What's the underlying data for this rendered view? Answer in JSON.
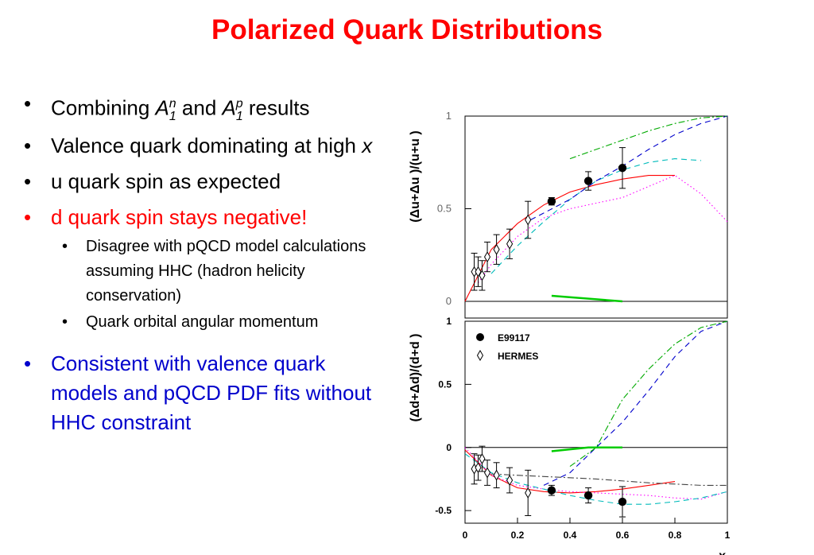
{
  "slide": {
    "title": "Polarized Quark Distributions"
  },
  "bullets": {
    "b1_text1": "Combining ",
    "b1_a1": "A",
    "b1_sub1": "1",
    "b1_sup1": "n",
    "b1_text2": " and ",
    "b1_a2": "A",
    "b1_sub2": "1",
    "b1_sup2": "p",
    "b1_text3": " results",
    "b2_text": "Valence quark dominating at high ",
    "b2_x": "x",
    "b3": "u quark spin as expected",
    "b4": "d quark spin stays negative!",
    "sub1": "Disagree with pQCD model calculations assuming HHC (hadron helicity conservation)",
    "sub2": "Quark orbital angular momentum",
    "b5": "Consistent with valence quark models and pQCD PDF fits without HHC constraint",
    "bullet_char": "•"
  },
  "colors": {
    "title": "#ff0000",
    "negative_bullet": "#ff0000",
    "conclusion_bullet": "#0000cc"
  },
  "chart_data": [
    {
      "type": "scatter",
      "panel": "top",
      "ylabel": "(Δu+Δu )/(u+u )",
      "xlim": [
        0,
        1
      ],
      "ylim": [
        0,
        1
      ],
      "yticks": [
        "0",
        "0.5",
        "1"
      ],
      "series": [
        {
          "name": "E99117",
          "marker": "filled-circle",
          "x": [
            0.33,
            0.47,
            0.6
          ],
          "y": [
            0.54,
            0.65,
            0.72
          ],
          "err": [
            0.02,
            0.05,
            0.11
          ]
        },
        {
          "name": "HERMES",
          "marker": "open-diamond",
          "x": [
            0.035,
            0.05,
            0.065,
            0.085,
            0.12,
            0.17,
            0.24
          ],
          "y": [
            0.16,
            0.16,
            0.14,
            0.24,
            0.28,
            0.31,
            0.44
          ],
          "err": [
            0.1,
            0.08,
            0.08,
            0.08,
            0.08,
            0.08,
            0.1
          ]
        }
      ],
      "curves": [
        {
          "color": "#ff0000",
          "style": "solid",
          "x": [
            0,
            0.1,
            0.2,
            0.3,
            0.4,
            0.5,
            0.6,
            0.7,
            0.8
          ],
          "y": [
            0.0,
            0.28,
            0.42,
            0.52,
            0.59,
            0.63,
            0.66,
            0.68,
            0.68
          ]
        },
        {
          "color": "#ff00ff",
          "style": "dotted",
          "x": [
            0.05,
            0.1,
            0.2,
            0.3,
            0.4,
            0.5,
            0.6,
            0.7,
            0.8,
            0.9,
            1.0
          ],
          "y": [
            0.1,
            0.2,
            0.35,
            0.45,
            0.5,
            0.53,
            0.56,
            0.62,
            0.68,
            0.58,
            0.43
          ]
        },
        {
          "color": "#00bbbb",
          "style": "dashed",
          "x": [
            0.1,
            0.2,
            0.3,
            0.4,
            0.5,
            0.6,
            0.7,
            0.8,
            0.9
          ],
          "y": [
            0.15,
            0.3,
            0.43,
            0.55,
            0.65,
            0.71,
            0.75,
            0.77,
            0.76
          ]
        },
        {
          "color": "#0000cc",
          "style": "dashed",
          "x": [
            0.25,
            0.4,
            0.5,
            0.6,
            0.7,
            0.8,
            0.9,
            1.0
          ],
          "y": [
            0.44,
            0.55,
            0.65,
            0.73,
            0.82,
            0.9,
            0.96,
            1.0
          ]
        },
        {
          "color": "#00aa00",
          "style": "dashdot",
          "x": [
            0.4,
            0.5,
            0.6,
            0.7,
            0.8,
            0.9,
            1.0
          ],
          "y": [
            0.77,
            0.82,
            0.87,
            0.92,
            0.96,
            0.99,
            1.0
          ]
        },
        {
          "color": "#00cc00",
          "style": "solid",
          "x": [
            0.33,
            0.6
          ],
          "y": [
            0.03,
            0.0
          ]
        }
      ]
    },
    {
      "type": "scatter",
      "panel": "bottom",
      "ylabel": "(Δd+Δd)/(d+d )",
      "xlabel": "x",
      "xlim": [
        0,
        1
      ],
      "ylim": [
        -0.6,
        1
      ],
      "yticks": [
        "-0.5",
        "0",
        "0.5",
        "1"
      ],
      "xticks": [
        "0",
        "0.2",
        "0.4",
        "0.6",
        "0.8",
        "1"
      ],
      "legend": {
        "placement": "top-left",
        "entries": [
          "E99117",
          "HERMES"
        ]
      },
      "series": [
        {
          "name": "E99117",
          "marker": "filled-circle",
          "x": [
            0.33,
            0.47,
            0.6
          ],
          "y": [
            -0.34,
            -0.38,
            -0.43
          ],
          "err": [
            0.04,
            0.06,
            0.12
          ]
        },
        {
          "name": "HERMES",
          "marker": "open-diamond",
          "x": [
            0.035,
            0.05,
            0.065,
            0.085,
            0.12,
            0.17,
            0.24
          ],
          "y": [
            -0.17,
            -0.16,
            -0.09,
            -0.2,
            -0.22,
            -0.26,
            -0.36
          ],
          "err": [
            0.12,
            0.1,
            0.1,
            0.1,
            0.1,
            0.1,
            0.18
          ]
        }
      ],
      "curves": [
        {
          "color": "#ff0000",
          "style": "solid",
          "x": [
            0,
            0.1,
            0.2,
            0.3,
            0.4,
            0.5,
            0.6,
            0.7,
            0.8
          ],
          "y": [
            -0.02,
            -0.22,
            -0.32,
            -0.35,
            -0.36,
            -0.35,
            -0.33,
            -0.3,
            -0.27
          ]
        },
        {
          "color": "#ff00ff",
          "style": "dotted",
          "x": [
            0,
            0.1,
            0.2,
            0.3,
            0.4,
            0.5,
            0.6,
            0.7,
            0.8,
            0.9,
            1.0
          ],
          "y": [
            0,
            -0.22,
            -0.3,
            -0.33,
            -0.35,
            -0.36,
            -0.37,
            -0.38,
            -0.4,
            -0.41,
            -0.35
          ]
        },
        {
          "color": "#00bbbb",
          "style": "dashed",
          "x": [
            0,
            0.1,
            0.2,
            0.3,
            0.4,
            0.5,
            0.6,
            0.7,
            0.8,
            0.9,
            1.0
          ],
          "y": [
            -0.05,
            -0.2,
            -0.28,
            -0.33,
            -0.38,
            -0.42,
            -0.45,
            -0.45,
            -0.43,
            -0.4,
            -0.35
          ]
        },
        {
          "color": "#0000cc",
          "style": "dashed",
          "x": [
            0.3,
            0.4,
            0.5,
            0.6,
            0.7,
            0.8,
            0.9,
            1.0
          ],
          "y": [
            -0.3,
            -0.2,
            0.0,
            0.2,
            0.45,
            0.72,
            0.92,
            1.0
          ]
        },
        {
          "color": "#00aa00",
          "style": "dashdot",
          "x": [
            0.4,
            0.5,
            0.6,
            0.7,
            0.8,
            0.9,
            1.0
          ],
          "y": [
            -0.15,
            0.0,
            0.38,
            0.62,
            0.82,
            0.95,
            1.0
          ]
        },
        {
          "color": "#444444",
          "style": "dashdot",
          "x": [
            0.1,
            0.3,
            0.5,
            0.7,
            0.9,
            1.0
          ],
          "y": [
            -0.21,
            -0.23,
            -0.25,
            -0.28,
            -0.3,
            -0.3
          ]
        },
        {
          "color": "#00cc00",
          "style": "solid",
          "x": [
            0.33,
            0.47,
            0.6
          ],
          "y": [
            -0.03,
            0.0,
            0.0
          ]
        }
      ]
    }
  ]
}
